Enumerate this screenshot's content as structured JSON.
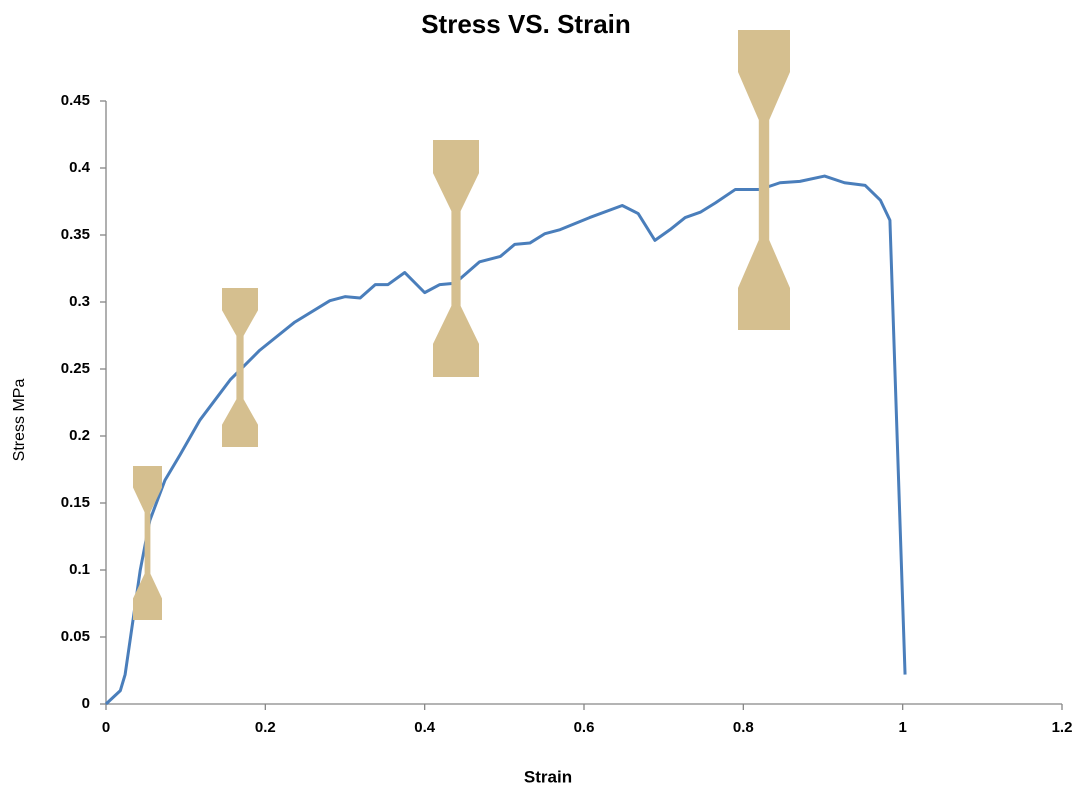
{
  "chart_data": {
    "type": "line",
    "title": "Stress VS. Strain",
    "x_label": "Strain",
    "y_label": "Stress MPa",
    "xlim": [
      0,
      1.2
    ],
    "xticks": [
      0,
      0.2,
      0.4,
      0.6,
      0.8,
      1,
      1.2
    ],
    "ylim": [
      0,
      0.45
    ],
    "yticks": [
      0,
      0.05,
      0.1,
      0.15,
      0.2,
      0.25,
      0.3,
      0.35,
      0.4,
      0.45
    ],
    "grid": false,
    "series": [
      {
        "color": "#4a7ebb",
        "x": [
          0,
          0.018,
          0.024,
          0.034,
          0.043,
          0.055,
          0.074,
          0.093,
          0.118,
          0.156,
          0.193,
          0.237,
          0.281,
          0.3,
          0.319,
          0.338,
          0.354,
          0.375,
          0.4,
          0.419,
          0.438,
          0.469,
          0.495,
          0.513,
          0.532,
          0.551,
          0.57,
          0.607,
          0.648,
          0.668,
          0.689,
          0.708,
          0.727,
          0.746,
          0.765,
          0.79,
          0.821,
          0.846,
          0.871,
          0.902,
          0.927,
          0.953,
          0.972,
          0.984,
          1.003
        ],
        "values": [
          0,
          0.01,
          0.022,
          0.063,
          0.1,
          0.137,
          0.167,
          0.186,
          0.212,
          0.242,
          0.264,
          0.285,
          0.301,
          0.304,
          0.303,
          0.313,
          0.313,
          0.322,
          0.307,
          0.313,
          0.314,
          0.33,
          0.334,
          0.343,
          0.344,
          0.351,
          0.354,
          0.363,
          0.372,
          0.366,
          0.346,
          0.354,
          0.363,
          0.367,
          0.374,
          0.384,
          0.384,
          0.389,
          0.39,
          0.394,
          0.389,
          0.387,
          0.376,
          0.361,
          0.022
        ]
      }
    ]
  }
}
